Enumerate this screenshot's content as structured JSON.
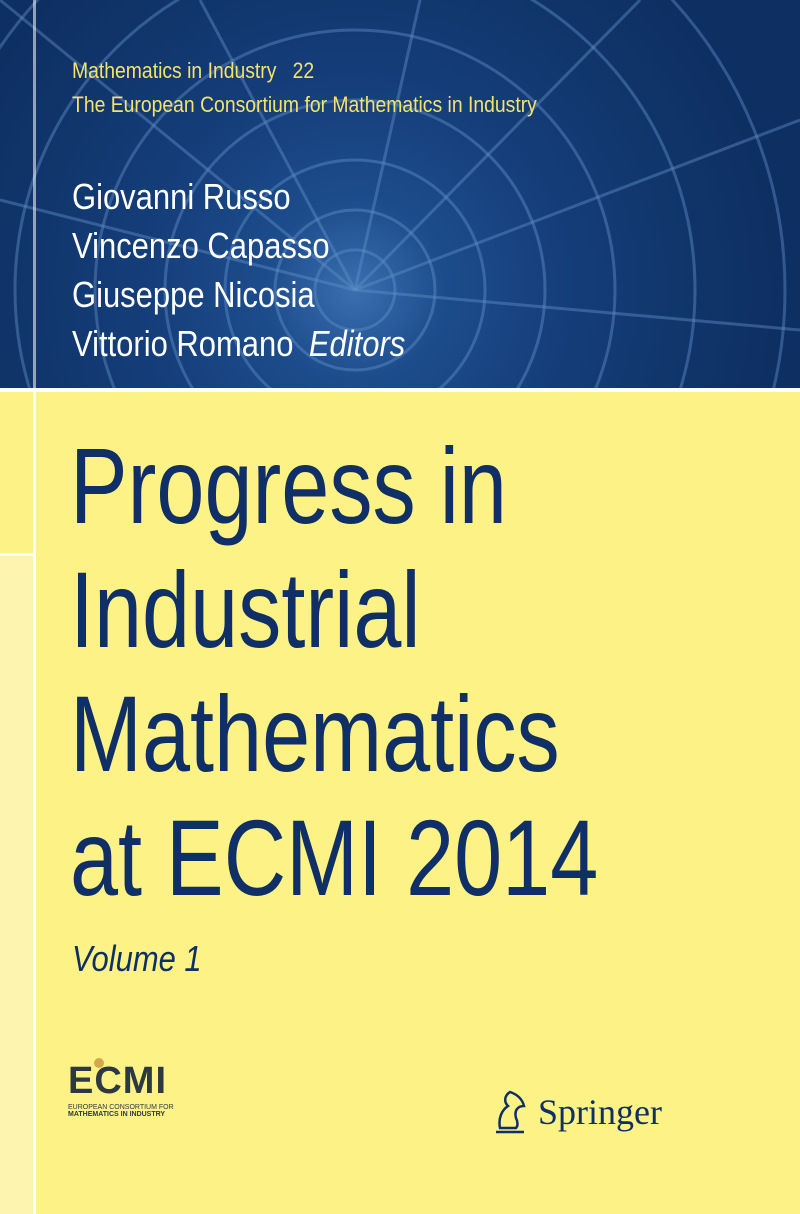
{
  "series": {
    "name": "Mathematics in Industry",
    "number": "22",
    "subtitle": "The European Consortium for Mathematics in Industry"
  },
  "editors": [
    "Giovanni Russo",
    "Vincenzo Capasso",
    "Giuseppe Nicosia",
    "Vittorio Romano"
  ],
  "editors_label": "Editors",
  "title_lines": [
    "Progress in",
    "Industrial",
    "Mathematics",
    "at ECMI 2014"
  ],
  "volume": "Volume 1",
  "ecmi_logo": {
    "text": "ECMI",
    "line1": "EUROPEAN CONSORTIUM FOR",
    "line2": "MATHEMATICS IN INDUSTRY"
  },
  "publisher": "Springer",
  "colors": {
    "navy": "#0f2f66",
    "yellow": "#fdf285",
    "series_gold": "#f4e26a"
  }
}
